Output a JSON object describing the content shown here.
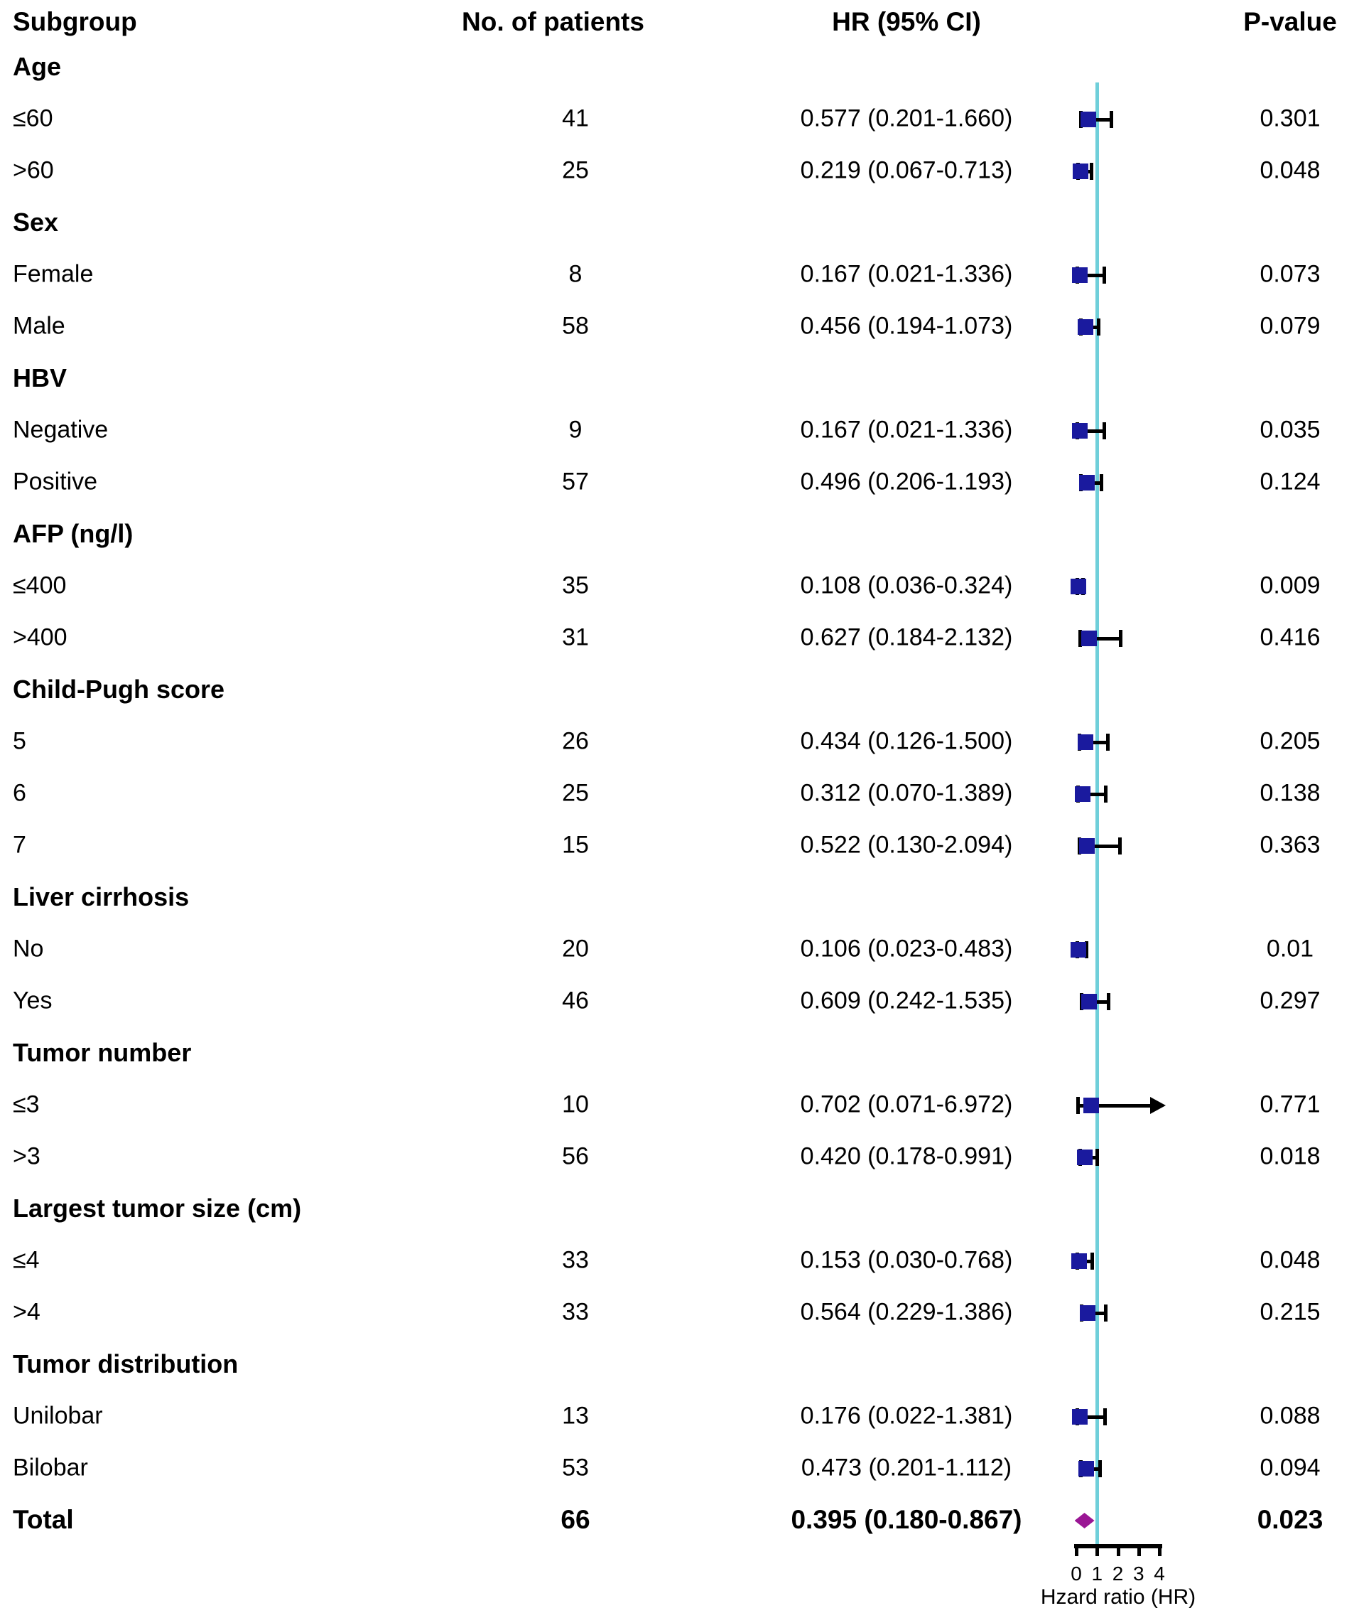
{
  "header": {
    "subgroup": "Subgroup",
    "patients": "No. of patients",
    "hr": "HR (95% CI)",
    "p": "P-value"
  },
  "colors": {
    "marker_square": "#1a1a9e",
    "ci_line": "#000000",
    "reference_line": "#6fcfda",
    "total_marker": "#9a1694",
    "text": "#000000"
  },
  "chart_data": {
    "type": "scatter",
    "variant": "forest-plot",
    "columns": [
      "Subgroup",
      "No. of patients",
      "HR (95% CI)",
      "P-value"
    ],
    "xlabel": "Hzard ratio (HR)",
    "xlim": [
      0,
      4
    ],
    "x_ticks": [
      "0",
      "1",
      "2",
      "3",
      "4"
    ],
    "reference_line_x": 1,
    "rows": [
      {
        "type": "group",
        "label": "Age"
      },
      {
        "type": "item",
        "label": "≤60",
        "n": "41",
        "hr_text": "0.577 (0.201-1.660)",
        "p": "0.301",
        "hr": 0.577,
        "lo": 0.201,
        "hi": 1.66
      },
      {
        "type": "item",
        "label": ">60",
        "n": "25",
        "hr_text": "0.219 (0.067-0.713)",
        "p": "0.048",
        "hr": 0.219,
        "lo": 0.067,
        "hi": 0.713
      },
      {
        "type": "group",
        "label": "Sex"
      },
      {
        "type": "item",
        "label": "Female",
        "n": "8",
        "hr_text": "0.167 (0.021-1.336)",
        "p": "0.073",
        "hr": 0.167,
        "lo": 0.021,
        "hi": 1.336
      },
      {
        "type": "item",
        "label": "Male",
        "n": "58",
        "hr_text": "0.456 (0.194-1.073)",
        "p": "0.079",
        "hr": 0.456,
        "lo": 0.194,
        "hi": 1.073
      },
      {
        "type": "group",
        "label": "HBV"
      },
      {
        "type": "item",
        "label": "Negative",
        "n": "9",
        "hr_text": "0.167 (0.021-1.336)",
        "p": "0.035",
        "hr": 0.167,
        "lo": 0.021,
        "hi": 1.336
      },
      {
        "type": "item",
        "label": "Positive",
        "n": "57",
        "hr_text": "0.496 (0.206-1.193)",
        "p": "0.124",
        "hr": 0.496,
        "lo": 0.206,
        "hi": 1.193
      },
      {
        "type": "group",
        "label": "AFP (ng/l)"
      },
      {
        "type": "item",
        "label": "≤400",
        "n": "35",
        "hr_text": "0.108 (0.036-0.324)",
        "p": "0.009",
        "hr": 0.108,
        "lo": 0.036,
        "hi": 0.324
      },
      {
        "type": "item",
        "label": ">400",
        "n": "31",
        "hr_text": "0.627 (0.184-2.132)",
        "p": "0.416",
        "hr": 0.627,
        "lo": 0.184,
        "hi": 2.132
      },
      {
        "type": "group",
        "label": "Child-Pugh score"
      },
      {
        "type": "item",
        "label": "5",
        "n": "26",
        "hr_text": "0.434 (0.126-1.500)",
        "p": "0.205",
        "hr": 0.434,
        "lo": 0.126,
        "hi": 1.5
      },
      {
        "type": "item",
        "label": "6",
        "n": "25",
        "hr_text": "0.312 (0.070-1.389)",
        "p": "0.138",
        "hr": 0.312,
        "lo": 0.07,
        "hi": 1.389
      },
      {
        "type": "item",
        "label": "7",
        "n": "15",
        "hr_text": "0.522 (0.130-2.094)",
        "p": "0.363",
        "hr": 0.522,
        "lo": 0.13,
        "hi": 2.094
      },
      {
        "type": "group",
        "label": "Liver cirrhosis"
      },
      {
        "type": "item",
        "label": "No",
        "n": "20",
        "hr_text": "0.106 (0.023-0.483)",
        "p": "0.01",
        "hr": 0.106,
        "lo": 0.023,
        "hi": 0.483
      },
      {
        "type": "item",
        "label": "Yes",
        "n": "46",
        "hr_text": "0.609 (0.242-1.535)",
        "p": "0.297",
        "hr": 0.609,
        "lo": 0.242,
        "hi": 1.535
      },
      {
        "type": "group",
        "label": "Tumor number"
      },
      {
        "type": "item",
        "label": "≤3",
        "n": "10",
        "hr_text": "0.702 (0.071-6.972)",
        "p": "0.771",
        "hr": 0.702,
        "lo": 0.071,
        "hi": 6.972,
        "clipped": true
      },
      {
        "type": "item",
        "label": ">3",
        "n": "56",
        "hr_text": "0.420 (0.178-0.991)",
        "p": "0.018",
        "hr": 0.42,
        "lo": 0.178,
        "hi": 0.991
      },
      {
        "type": "group",
        "label": "Largest tumor size (cm)"
      },
      {
        "type": "item",
        "label": "≤4",
        "n": "33",
        "hr_text": "0.153 (0.030-0.768)",
        "p": "0.048",
        "hr": 0.153,
        "lo": 0.03,
        "hi": 0.768
      },
      {
        "type": "item",
        "label": ">4",
        "n": "33",
        "hr_text": "0.564 (0.229-1.386)",
        "p": "0.215",
        "hr": 0.564,
        "lo": 0.229,
        "hi": 1.386
      },
      {
        "type": "group",
        "label": "Tumor distribution"
      },
      {
        "type": "item",
        "label": "Unilobar",
        "n": "13",
        "hr_text": "0.176 (0.022-1.381)",
        "p": "0.088",
        "hr": 0.176,
        "lo": 0.022,
        "hi": 1.381
      },
      {
        "type": "item",
        "label": "Bilobar",
        "n": "53",
        "hr_text": "0.473 (0.201-1.112)",
        "p": "0.094",
        "hr": 0.473,
        "lo": 0.201,
        "hi": 1.112
      },
      {
        "type": "total",
        "label": "Total",
        "n": "66",
        "hr_text": "0.395 (0.180-0.867)",
        "p": "0.023",
        "hr": 0.395,
        "lo": 0.18,
        "hi": 0.867
      }
    ]
  }
}
